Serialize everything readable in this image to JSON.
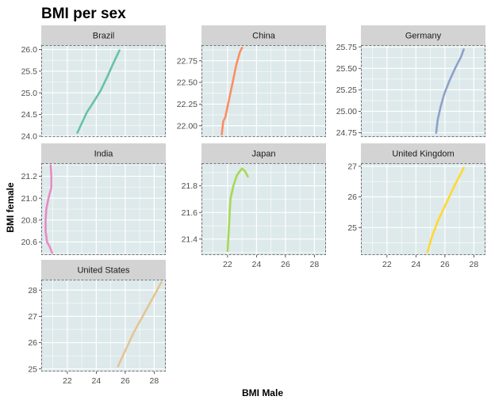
{
  "chart_data": {
    "type": "line",
    "title": "BMI per sex",
    "xlabel": "BMI Male",
    "ylabel": "BMI female",
    "xlim": [
      20.2,
      28.8
    ],
    "xticks": [
      22,
      24,
      26,
      28
    ],
    "grid": true,
    "legend": "none",
    "panel_background": "#dde9ea",
    "strip_background": "#d3d3d3",
    "panels": [
      {
        "name": "Brazil",
        "color": "#66c2a5",
        "ylim": [
          23.98,
          26.1
        ],
        "yticks": [
          24.0,
          24.5,
          25.0,
          25.5,
          26.0
        ],
        "x": [
          22.7,
          23.0,
          23.35,
          23.8,
          24.3,
          24.8,
          25.2,
          25.6
        ],
        "y": [
          24.08,
          24.3,
          24.55,
          24.78,
          25.05,
          25.4,
          25.7,
          25.98
        ]
      },
      {
        "name": "China",
        "color": "#fc8d62",
        "ylim": [
          21.87,
          22.93
        ],
        "yticks": [
          22.0,
          22.25,
          22.5,
          22.75
        ],
        "x": [
          21.6,
          21.7,
          21.85,
          22.1,
          22.35,
          22.6,
          22.85,
          23.0
        ],
        "y": [
          21.9,
          22.05,
          22.1,
          22.3,
          22.5,
          22.7,
          22.85,
          22.9
        ]
      },
      {
        "name": "Germany",
        "color": "#8da0cb",
        "ylim": [
          24.7,
          25.77
        ],
        "yticks": [
          24.75,
          25.0,
          25.25,
          25.5,
          25.75
        ],
        "x": [
          25.4,
          25.5,
          25.7,
          25.95,
          26.3,
          26.7,
          27.1,
          27.3
        ],
        "y": [
          24.75,
          24.9,
          25.05,
          25.2,
          25.35,
          25.5,
          25.63,
          25.72
        ]
      },
      {
        "name": "India",
        "color": "#e78ac3",
        "ylim": [
          20.48,
          21.32
        ],
        "yticks": [
          20.6,
          20.8,
          21.0,
          21.2
        ],
        "x": [
          20.95,
          20.8,
          20.6,
          20.5,
          20.5,
          20.55,
          20.7,
          20.9,
          20.9,
          20.85
        ],
        "y": [
          20.5,
          20.55,
          20.6,
          20.7,
          20.8,
          20.9,
          21.0,
          21.1,
          21.2,
          21.3
        ]
      },
      {
        "name": "Japan",
        "color": "#a6d854",
        "ylim": [
          21.28,
          21.97
        ],
        "yticks": [
          21.4,
          21.6,
          21.8
        ],
        "x": [
          22.0,
          22.1,
          22.2,
          22.4,
          22.65,
          23.0,
          23.2,
          23.4
        ],
        "y": [
          21.31,
          21.5,
          21.7,
          21.8,
          21.88,
          21.93,
          21.91,
          21.87
        ]
      },
      {
        "name": "United Kingdom",
        "color": "#ffd92f",
        "ylim": [
          24.1,
          27.1
        ],
        "yticks": [
          25,
          26,
          27
        ],
        "x": [
          24.8,
          25.1,
          25.5,
          26.0,
          26.6,
          27.3
        ],
        "y": [
          24.2,
          24.7,
          25.2,
          25.7,
          26.3,
          26.95
        ]
      },
      {
        "name": "United States",
        "color": "#e5c494",
        "ylim": [
          24.9,
          28.4
        ],
        "yticks": [
          25,
          26,
          27,
          28
        ],
        "x": [
          25.5,
          26.0,
          26.6,
          27.3,
          27.9,
          28.5
        ],
        "y": [
          25.1,
          25.7,
          26.4,
          27.1,
          27.7,
          28.3
        ]
      }
    ]
  }
}
